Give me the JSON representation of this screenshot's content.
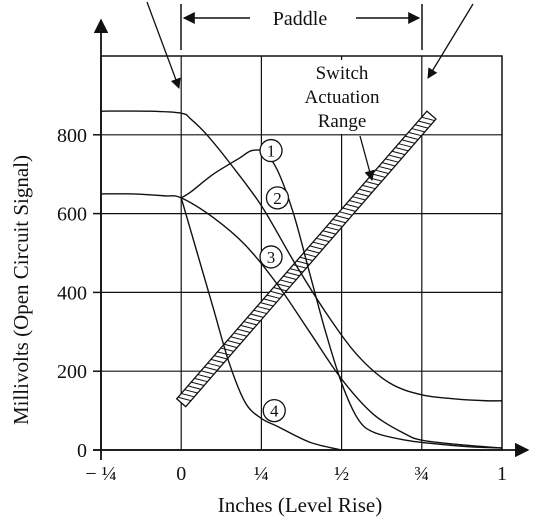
{
  "chart_data": {
    "type": "line",
    "xlabel": "Inches (Level Rise)",
    "ylabel": "Millivolts (Open Circuit Signal)",
    "xlim": [
      -0.25,
      1.0
    ],
    "ylim": [
      0,
      1000
    ],
    "grid": true,
    "x_ticks": [
      -0.25,
      0,
      0.25,
      0.5,
      0.75,
      1
    ],
    "x_tick_labels": [
      "− ¼",
      "0",
      "¼",
      "½",
      "¾",
      "1"
    ],
    "y_ticks": [
      0,
      200,
      400,
      600,
      800
    ],
    "y_tick_labels": [
      "0",
      "200",
      "400",
      "600",
      "800"
    ],
    "series": [
      {
        "name": "1",
        "points": [
          [
            0,
            640
          ],
          [
            0.03,
            655
          ],
          [
            0.1,
            700
          ],
          [
            0.18,
            740
          ],
          [
            0.22,
            760
          ],
          [
            0.26,
            755
          ],
          [
            0.3,
            710
          ],
          [
            0.35,
            600
          ],
          [
            0.4,
            450
          ],
          [
            0.45,
            300
          ],
          [
            0.5,
            170
          ],
          [
            0.55,
            80
          ],
          [
            0.6,
            45
          ],
          [
            0.7,
            25
          ],
          [
            0.8,
            15
          ],
          [
            0.9,
            8
          ],
          [
            1.0,
            5
          ]
        ]
      },
      {
        "name": "2",
        "points": [
          [
            -0.25,
            860
          ],
          [
            -0.1,
            860
          ],
          [
            0,
            855
          ],
          [
            0.03,
            840
          ],
          [
            0.08,
            800
          ],
          [
            0.15,
            730
          ],
          [
            0.25,
            620
          ],
          [
            0.35,
            480
          ],
          [
            0.45,
            350
          ],
          [
            0.55,
            240
          ],
          [
            0.65,
            170
          ],
          [
            0.75,
            140
          ],
          [
            0.85,
            130
          ],
          [
            0.95,
            125
          ],
          [
            1.0,
            125
          ]
        ]
      },
      {
        "name": "3",
        "points": [
          [
            -0.25,
            650
          ],
          [
            -0.15,
            650
          ],
          [
            -0.05,
            645
          ],
          [
            0,
            640
          ],
          [
            0.1,
            590
          ],
          [
            0.2,
            520
          ],
          [
            0.3,
            420
          ],
          [
            0.4,
            300
          ],
          [
            0.5,
            180
          ],
          [
            0.6,
            90
          ],
          [
            0.7,
            40
          ],
          [
            0.75,
            25
          ],
          [
            0.85,
            15
          ],
          [
            0.95,
            8
          ],
          [
            1.0,
            5
          ]
        ]
      },
      {
        "name": "4",
        "points": [
          [
            0,
            640
          ],
          [
            0.05,
            500
          ],
          [
            0.1,
            360
          ],
          [
            0.15,
            220
          ],
          [
            0.2,
            120
          ],
          [
            0.25,
            80
          ],
          [
            0.3,
            60
          ],
          [
            0.4,
            20
          ],
          [
            0.5,
            0
          ]
        ]
      }
    ],
    "actuation_band": {
      "start": [
        0,
        120
      ],
      "end": [
        0.78,
        850
      ]
    },
    "annotations": {
      "paddle": "Paddle",
      "switch_range": [
        "Switch",
        "Actuation",
        "Range"
      ]
    }
  }
}
